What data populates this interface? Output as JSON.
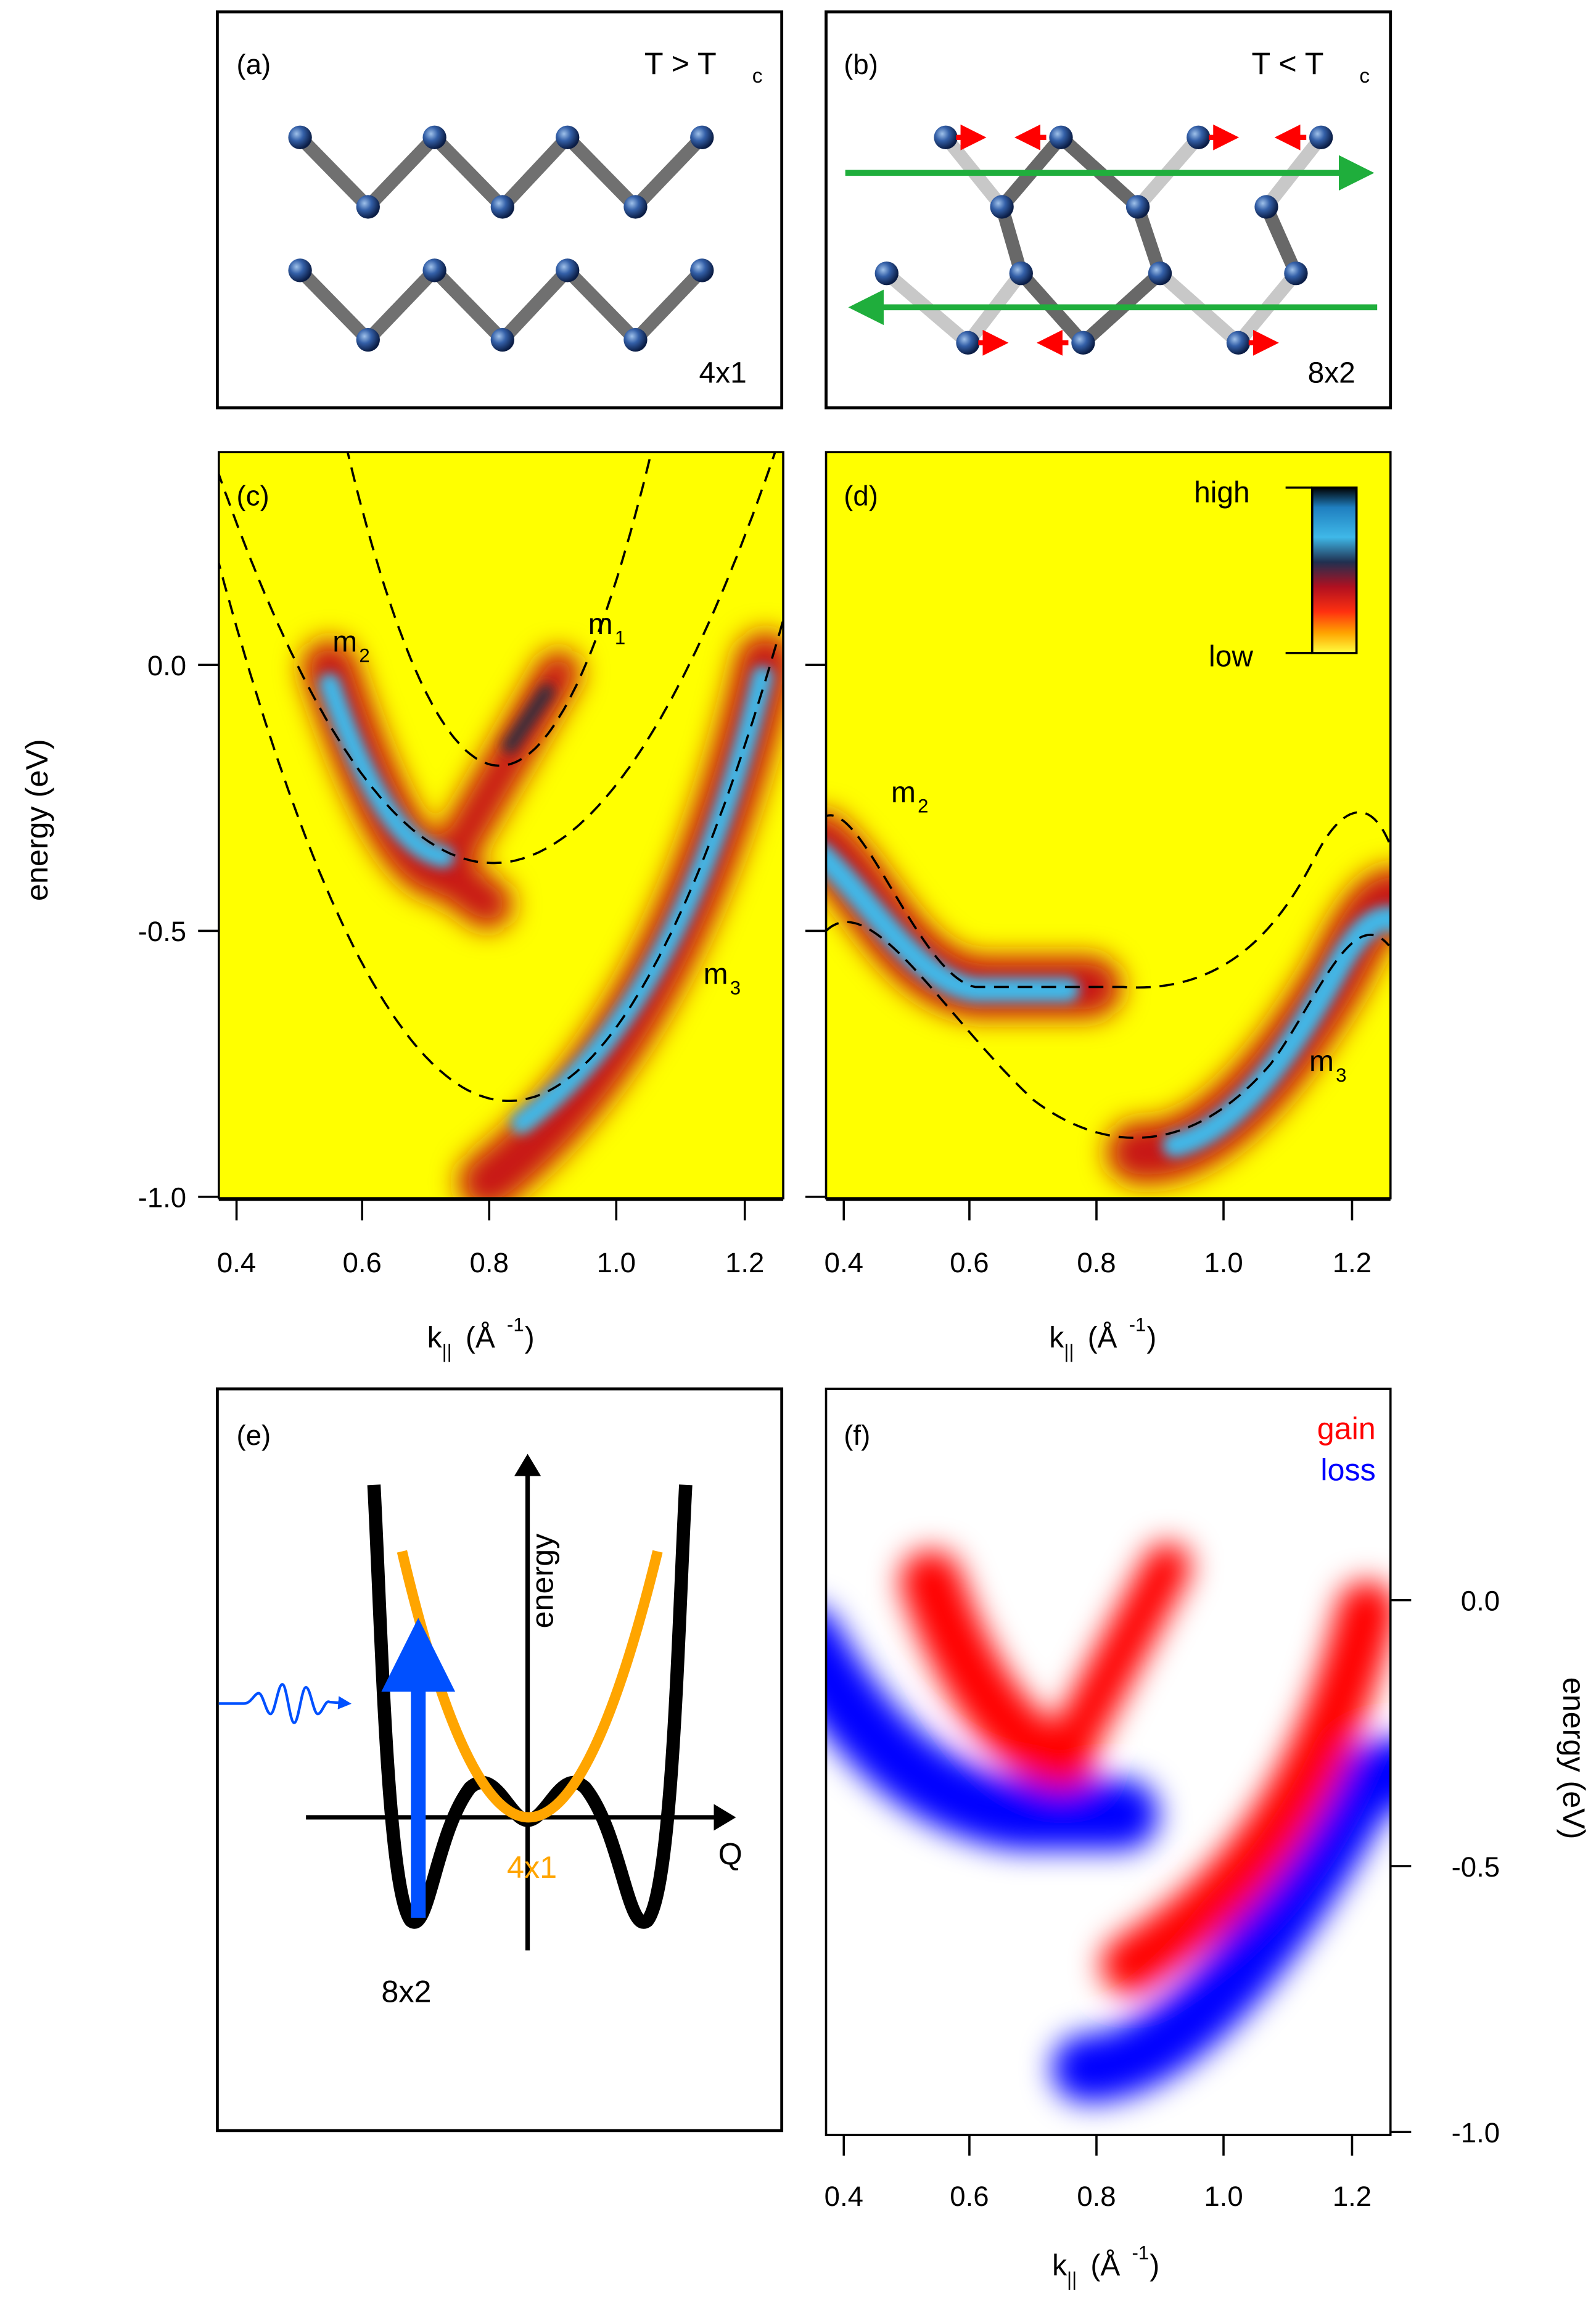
{
  "panels": {
    "a": {
      "label": "(a)",
      "condition": "T > T",
      "condition_sub": "c",
      "structure": "4x1"
    },
    "b": {
      "label": "(b)",
      "condition": "T < T",
      "condition_sub": "c",
      "structure": "8x2"
    },
    "c": {
      "label": "(c)",
      "band_labels": [
        {
          "text": "m",
          "sub": "2"
        },
        {
          "text": "m",
          "sub": "1"
        },
        {
          "text": "m",
          "sub": "3"
        }
      ]
    },
    "d": {
      "label": "(d)",
      "band_labels": [
        {
          "text": "m",
          "sub": "2"
        },
        {
          "text": "m",
          "sub": "3"
        }
      ],
      "colorbar": {
        "high": "high",
        "low": "low"
      }
    },
    "e": {
      "label": "(e)",
      "energy_axis": "energy",
      "q_axis": "Q",
      "state_4x1": "4x1",
      "state_8x2": "8x2"
    },
    "f": {
      "label": "(f)",
      "legend_gain": "gain",
      "legend_loss": "loss"
    }
  },
  "axes": {
    "energy_label": "energy (eV)",
    "k_label": "k",
    "k_label_sub": "||",
    "k_label_unit": "(Å",
    "k_label_exp": "-1",
    "k_label_close": ")",
    "k_ticks": [
      "0.4",
      "0.6",
      "0.8",
      "1.0",
      "1.2"
    ],
    "e_ticks": [
      "0.0",
      "-0.5",
      "-1.0"
    ]
  },
  "colors": {
    "background_yellow": "#ffff00",
    "gain": "#ff0000",
    "loss": "#0000ff",
    "potential_4x1": "#ffa500",
    "potential_8x2": "#000000",
    "arrow_green": "#1fae3c",
    "arrow_red": "#ff0000"
  },
  "chart_data": [
    {
      "type": "heatmap",
      "panel": "c",
      "xlabel": "k|| (Å^-1)",
      "ylabel": "energy (eV)",
      "xlim": [
        0.365,
        1.26
      ],
      "ylim": [
        -1.0,
        0.38
      ],
      "x_ticks": [
        0.4,
        0.6,
        0.8,
        1.0,
        1.2
      ],
      "y_ticks": [
        0.0,
        -0.5,
        -1.0
      ],
      "dashed_curves": [
        {
          "name": "m1",
          "shape": "parabola",
          "k0": 0.81,
          "e0": -0.2,
          "curvature": 10.0
        },
        {
          "name": "m2",
          "shape": "parabola",
          "k0": 0.8,
          "e0": -0.38,
          "curvature": 3.8
        },
        {
          "name": "m3",
          "shape": "parabola",
          "k0": 0.825,
          "e0": -0.82,
          "curvature": 4.7
        }
      ]
    },
    {
      "type": "heatmap",
      "panel": "d",
      "xlabel": "k|| (Å^-1)",
      "ylabel": "energy (eV)",
      "xlim": [
        0.365,
        1.26
      ],
      "ylim": [
        -1.0,
        0.38
      ],
      "x_ticks": [
        0.4,
        0.6,
        0.8,
        1.0,
        1.2
      ],
      "y_ticks": [
        0.0,
        -0.5,
        -1.0
      ]
    },
    {
      "type": "heatmap",
      "panel": "f",
      "xlabel": "k|| (Å^-1)",
      "ylabel": "energy (eV)",
      "xlim": [
        0.365,
        1.26
      ],
      "ylim": [
        -1.0,
        0.38
      ],
      "x_ticks": [
        0.4,
        0.6,
        0.8,
        1.0,
        1.2
      ],
      "y_ticks": [
        0.0,
        -0.5,
        -1.0
      ],
      "series": [
        {
          "name": "gain"
        },
        {
          "name": "loss"
        }
      ]
    }
  ]
}
